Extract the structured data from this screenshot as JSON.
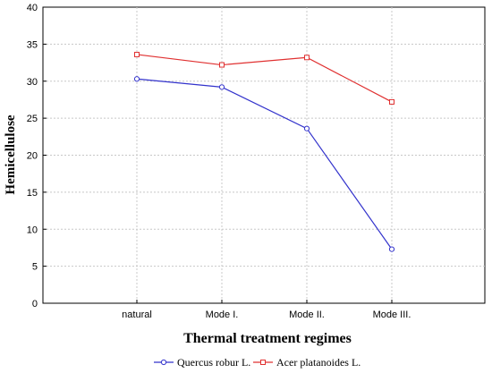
{
  "chart_data": {
    "type": "line",
    "categories": [
      "natural",
      "Mode I.",
      "Mode II.",
      "Mode III."
    ],
    "series": [
      {
        "name": "Quercus robur L.",
        "marker": "circle",
        "color": "#3333cc",
        "values": [
          30.3,
          29.2,
          23.6,
          7.3
        ]
      },
      {
        "name": "Acer platanoides L.",
        "marker": "square",
        "color": "#e03030",
        "values": [
          33.6,
          32.2,
          33.2,
          27.2
        ]
      }
    ],
    "xlabel": "Thermal treatment regimes",
    "ylabel": "Hemicellulose",
    "ylim": [
      0,
      40
    ],
    "yticks": [
      0,
      5,
      10,
      15,
      20,
      25,
      30,
      35,
      40
    ],
    "grid": true,
    "legend_position": "bottom-center"
  }
}
